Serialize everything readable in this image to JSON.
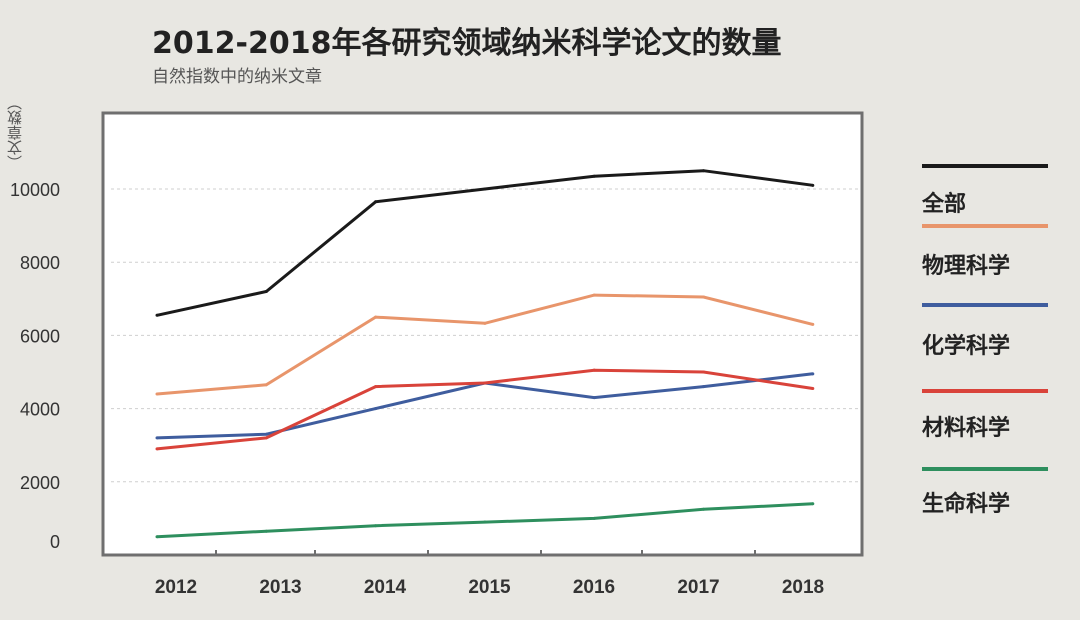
{
  "chart_data": {
    "type": "line",
    "title": "2012-2018年各研究领域纳米科学论文的数量",
    "subtitle": "自然指数中的纳米文章",
    "xlabel": "",
    "ylabel": "（文章数）",
    "categories": [
      "2012",
      "2013",
      "2014",
      "2015",
      "2016",
      "2017",
      "2018"
    ],
    "ylim": [
      0,
      10000
    ],
    "yticks": [
      "0",
      "2000",
      "4000",
      "6000",
      "8000",
      "10000"
    ],
    "grid": true,
    "legend_position": "right",
    "series": [
      {
        "name": "全部",
        "color": "#1a1a1a",
        "values": [
          6550,
          7200,
          9650,
          10000,
          10350,
          10500,
          10100
        ]
      },
      {
        "name": "物理科学",
        "color": "#e8956b",
        "values": [
          4400,
          4650,
          6500,
          6330,
          7100,
          7050,
          6300
        ]
      },
      {
        "name": "化学科学",
        "color": "#3f5d9e",
        "values": [
          3200,
          3300,
          4000,
          4700,
          4300,
          4600,
          4950
        ]
      },
      {
        "name": "材料科学",
        "color": "#d9433a",
        "values": [
          2900,
          3200,
          4600,
          4700,
          5050,
          5000,
          4550
        ]
      },
      {
        "name": "生命科学",
        "color": "#2e8f5e",
        "values": [
          500,
          650,
          800,
          900,
          1000,
          1250,
          1400
        ]
      }
    ]
  }
}
